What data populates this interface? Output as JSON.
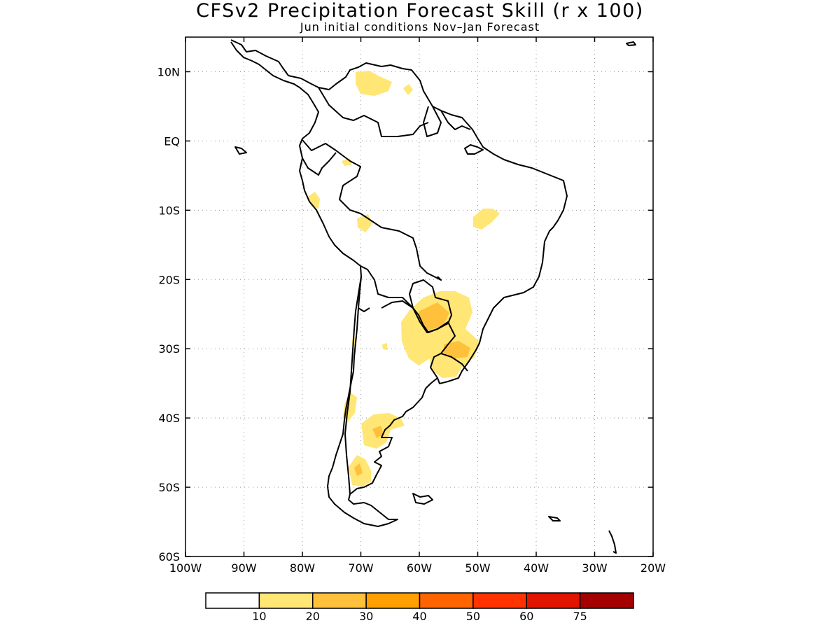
{
  "title": "CFSv2 Precipitation Forecast Skill (r x 100)",
  "subtitle": "Jun initial conditions  Nov–Jan Forecast",
  "map": {
    "lon_range": [
      -100,
      -20
    ],
    "lat_range": [
      -60,
      15
    ],
    "lon_ticks": [
      {
        "lon": -100,
        "label": "100W"
      },
      {
        "lon": -90,
        "label": "90W"
      },
      {
        "lon": -80,
        "label": "80W"
      },
      {
        "lon": -70,
        "label": "70W"
      },
      {
        "lon": -60,
        "label": "60W"
      },
      {
        "lon": -50,
        "label": "50W"
      },
      {
        "lon": -40,
        "label": "40W"
      },
      {
        "lon": -30,
        "label": "30W"
      },
      {
        "lon": -20,
        "label": "20W"
      }
    ],
    "lat_ticks": [
      {
        "lat": 10,
        "label": "10N"
      },
      {
        "lat": 0,
        "label": "EQ"
      },
      {
        "lat": -10,
        "label": "10S"
      },
      {
        "lat": -20,
        "label": "20S"
      },
      {
        "lat": -30,
        "label": "30S"
      },
      {
        "lat": -40,
        "label": "40S"
      },
      {
        "lat": -50,
        "label": "50S"
      },
      {
        "lat": -60,
        "label": "60S"
      }
    ],
    "grid": true
  },
  "colorbar": {
    "colors": [
      "#ffffff",
      "#ffe675",
      "#ffc03c",
      "#ffa000",
      "#ff6400",
      "#ff3200",
      "#e11400",
      "#a50000"
    ],
    "labels": [
      "10",
      "20",
      "30",
      "40",
      "50",
      "60",
      "75"
    ]
  }
}
